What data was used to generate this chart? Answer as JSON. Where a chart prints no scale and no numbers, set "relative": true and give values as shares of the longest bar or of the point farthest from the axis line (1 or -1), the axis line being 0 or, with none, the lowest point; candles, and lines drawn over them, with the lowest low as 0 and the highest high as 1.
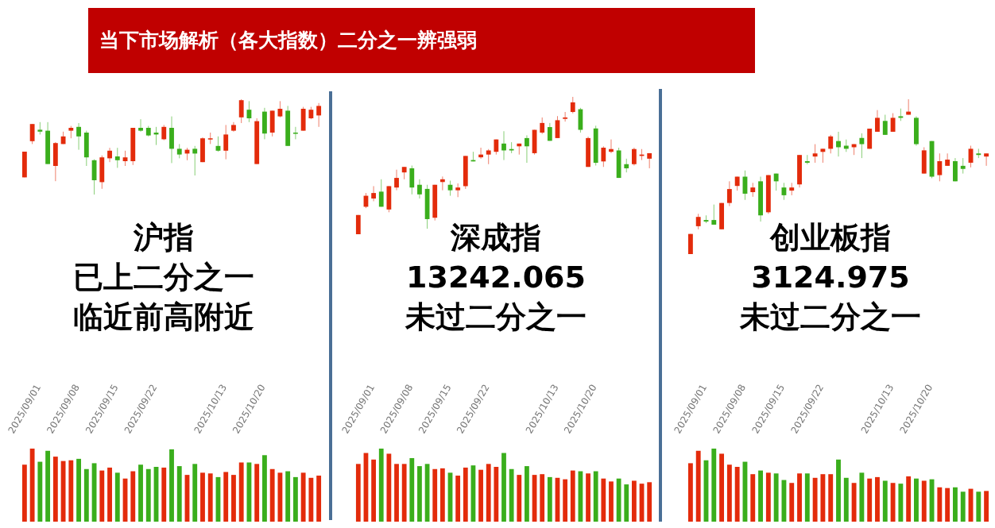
{
  "chart_data": [
    {
      "type": "candlestick",
      "title": "当下市场解析（各大指数）二分之一辨强弱",
      "relative": true,
      "categories": [
        null,
        null,
        null,
        null,
        null,
        null,
        null,
        null,
        null,
        null,
        null,
        null,
        null,
        null,
        null,
        null,
        null,
        null,
        null,
        null,
        null,
        null,
        null,
        null,
        null,
        null,
        null,
        null,
        null,
        null,
        null,
        null,
        null,
        null,
        null,
        null,
        null,
        null,
        null
      ],
      "ohlc": [
        [
          0.18,
          0.45,
          0.18,
          0.45
        ],
        [
          0.56,
          0.74,
          0.53,
          0.74
        ],
        [
          0.68,
          0.76,
          0.63,
          0.66
        ],
        [
          0.67,
          0.76,
          0.32,
          0.32
        ],
        [
          0.3,
          0.55,
          0.14,
          0.54
        ],
        [
          0.53,
          0.66,
          0.53,
          0.61
        ],
        [
          0.67,
          0.72,
          0.59,
          0.7
        ],
        [
          0.71,
          0.75,
          0.47,
          0.61
        ],
        [
          0.65,
          0.67,
          0.3,
          0.39
        ],
        [
          0.36,
          0.37,
          0,
          0.15
        ],
        [
          0.13,
          0.41,
          0.06,
          0.39
        ],
        [
          0.38,
          0.49,
          0.34,
          0.46
        ],
        [
          0.4,
          0.49,
          0.28,
          0.36
        ],
        [
          0.35,
          0.46,
          0.3,
          0.39
        ],
        [
          0.35,
          0.7,
          0.31,
          0.7
        ],
        [
          0.7,
          0.79,
          0.66,
          0.67
        ],
        [
          0.7,
          0.72,
          0.61,
          0.62
        ],
        [
          0.65,
          0.71,
          0.52,
          0.63
        ],
        [
          0.58,
          0.73,
          0.57,
          0.71
        ],
        [
          0.7,
          0.82,
          0.33,
          0.48
        ],
        [
          0.48,
          0.53,
          0.38,
          0.42
        ],
        [
          0.43,
          0.49,
          0.36,
          0.47
        ],
        [
          0.48,
          0.51,
          0.2,
          0.43
        ],
        [
          0.34,
          0.6,
          0.34,
          0.59
        ],
        [
          0.58,
          0.65,
          0.53,
          0.59
        ],
        [
          0.51,
          0.61,
          0.45,
          0.46
        ],
        [
          0.46,
          0.73,
          0.37,
          0.63
        ],
        [
          0.67,
          0.76,
          0.66,
          0.73
        ],
        [
          0.81,
          1,
          0.75,
          0.99
        ],
        [
          0.89,
          0.98,
          0.76,
          0.8
        ],
        [
          0.32,
          0.8,
          0.32,
          0.77
        ],
        [
          0.87,
          0.91,
          0.58,
          0.64
        ],
        [
          0.65,
          0.88,
          0.61,
          0.88
        ],
        [
          0.82,
          0.98,
          0.81,
          0.9
        ],
        [
          0.88,
          0.93,
          0.51,
          0.51
        ],
        [
          0.65,
          0.71,
          0.58,
          0.64
        ],
        [
          0.67,
          0.92,
          0.67,
          0.9
        ],
        [
          0.8,
          0.92,
          0.79,
          0.89
        ],
        [
          0.83,
          0.96,
          0.71,
          0.93
        ]
      ],
      "colors": [
        "#e32b0b",
        "#e32b0b",
        "#3aae1c",
        "#3aae1c",
        "#e32b0b",
        "#e32b0b",
        "#e32b0b",
        "#3aae1c",
        "#3aae1c",
        "#3aae1c",
        "#e32b0b",
        "#e32b0b",
        "#3aae1c",
        "#e32b0b",
        "#e32b0b",
        "#3aae1c",
        "#3aae1c",
        "#3aae1c",
        "#e32b0b",
        "#3aae1c",
        "#3aae1c",
        "#e32b0b",
        "#3aae1c",
        "#e32b0b",
        "#e32b0b",
        "#3aae1c",
        "#e32b0b",
        "#e32b0b",
        "#e32b0b",
        "#3aae1c",
        "#e32b0b",
        "#3aae1c",
        "#e32b0b",
        "#e32b0b",
        "#3aae1c",
        "#3aae1c",
        "#e32b0b",
        "#e32b0b",
        "#e32b0b"
      ],
      "annotations": [
        "沪指",
        "已上二分之一",
        "临近前高附近"
      ]
    },
    {
      "type": "candlestick",
      "relative": true,
      "categories": [
        null,
        null,
        null,
        null,
        null,
        null,
        null,
        null,
        null,
        null,
        null,
        null,
        null,
        null,
        null,
        null,
        null,
        null,
        null,
        null,
        null,
        null,
        null,
        null,
        null,
        null,
        null,
        null,
        null,
        null,
        null,
        null,
        null,
        null,
        null,
        null,
        null,
        null,
        null
      ],
      "ohlc": [
        [
          0,
          0.14,
          0,
          0.14
        ],
        [
          0.2,
          0.3,
          0.19,
          0.28
        ],
        [
          0.26,
          0.35,
          0.24,
          0.3
        ],
        [
          0.31,
          0.4,
          0.2,
          0.2
        ],
        [
          0.18,
          0.35,
          0.16,
          0.35
        ],
        [
          0.34,
          0.47,
          0.32,
          0.41
        ],
        [
          0.45,
          0.49,
          0.4,
          0.49
        ],
        [
          0.48,
          0.5,
          0.29,
          0.34
        ],
        [
          0.36,
          0.4,
          0.26,
          0.29
        ],
        [
          0.33,
          0.36,
          0.04,
          0.11
        ],
        [
          0.12,
          0.36,
          0.1,
          0.36
        ],
        [
          0.38,
          0.42,
          0.32,
          0.4
        ],
        [
          0.36,
          0.39,
          0.28,
          0.32
        ],
        [
          0.32,
          0.37,
          0.27,
          0.34
        ],
        [
          0.35,
          0.57,
          0.33,
          0.57
        ],
        [
          0.54,
          0.6,
          0.53,
          0.53
        ],
        [
          0.56,
          0.63,
          0.55,
          0.58
        ],
        [
          0.58,
          0.62,
          0.51,
          0.61
        ],
        [
          0.6,
          0.69,
          0.58,
          0.69
        ],
        [
          0.66,
          0.75,
          0.54,
          0.61
        ],
        [
          0.62,
          0.67,
          0.59,
          0.61
        ],
        [
          0.64,
          0.66,
          0.58,
          0.66
        ],
        [
          0.7,
          0.72,
          0.52,
          0.64
        ],
        [
          0.59,
          0.76,
          0.58,
          0.76
        ],
        [
          0.74,
          0.85,
          0.73,
          0.81
        ],
        [
          0.78,
          0.81,
          0.68,
          0.68
        ],
        [
          0.7,
          0.86,
          0.7,
          0.83
        ],
        [
          0.84,
          0.89,
          0.82,
          0.85
        ],
        [
          0.89,
          1,
          0.88,
          0.96
        ],
        [
          0.91,
          0.92,
          0.74,
          0.76
        ],
        [
          0.49,
          0.71,
          0.49,
          0.7
        ],
        [
          0.77,
          0.79,
          0.5,
          0.52
        ],
        [
          0.53,
          0.64,
          0.49,
          0.63
        ],
        [
          0.6,
          0.69,
          0.59,
          0.62
        ],
        [
          0.61,
          0.63,
          0.41,
          0.41
        ],
        [
          0.51,
          0.55,
          0.45,
          0.48
        ],
        [
          0.51,
          0.63,
          0.5,
          0.62
        ],
        [
          0.57,
          0.62,
          0.54,
          0.58
        ],
        [
          0.55,
          0.59,
          0.48,
          0.59
        ]
      ],
      "colors": [
        "#e32b0b",
        "#e32b0b",
        "#e32b0b",
        "#3aae1c",
        "#e32b0b",
        "#e32b0b",
        "#e32b0b",
        "#3aae1c",
        "#3aae1c",
        "#3aae1c",
        "#e32b0b",
        "#e32b0b",
        "#3aae1c",
        "#e32b0b",
        "#e32b0b",
        "#3aae1c",
        "#e32b0b",
        "#e32b0b",
        "#e32b0b",
        "#3aae1c",
        "#3aae1c",
        "#e32b0b",
        "#3aae1c",
        "#e32b0b",
        "#e32b0b",
        "#3aae1c",
        "#e32b0b",
        "#e32b0b",
        "#e32b0b",
        "#3aae1c",
        "#e32b0b",
        "#3aae1c",
        "#e32b0b",
        "#e32b0b",
        "#3aae1c",
        "#3aae1c",
        "#e32b0b",
        "#e32b0b",
        "#e32b0b"
      ],
      "annotations": [
        "深成指",
        "13242.065",
        "未过二分之一"
      ]
    },
    {
      "type": "candlestick",
      "relative": true,
      "categories": [
        null,
        null,
        null,
        null,
        null,
        null,
        null,
        null,
        null,
        null,
        null,
        null,
        null,
        null,
        null,
        null,
        null,
        null,
        null,
        null,
        null,
        null,
        null,
        null,
        null,
        null,
        null,
        null,
        null,
        null,
        null,
        null,
        null,
        null,
        null,
        null,
        null,
        null,
        null
      ],
      "ohlc": [
        [
          0,
          0.13,
          0,
          0.13
        ],
        [
          0.18,
          0.26,
          0.16,
          0.24
        ],
        [
          0.22,
          0.25,
          0.2,
          0.21
        ],
        [
          0.22,
          0.32,
          0.19,
          0.19
        ],
        [
          0.16,
          0.33,
          0.16,
          0.33
        ],
        [
          0.33,
          0.47,
          0.31,
          0.42
        ],
        [
          0.44,
          0.5,
          0.41,
          0.5
        ],
        [
          0.5,
          0.54,
          0.35,
          0.39
        ],
        [
          0.4,
          0.46,
          0.37,
          0.43
        ],
        [
          0.47,
          0.5,
          0.21,
          0.25
        ],
        [
          0.27,
          0.51,
          0.26,
          0.51
        ],
        [
          0.52,
          0.52,
          0.41,
          0.47
        ],
        [
          0.43,
          0.46,
          0.35,
          0.38
        ],
        [
          0.41,
          0.46,
          0.38,
          0.43
        ],
        [
          0.45,
          0.64,
          0.43,
          0.64
        ],
        [
          0.6,
          0.64,
          0.58,
          0.59
        ],
        [
          0.63,
          0.71,
          0.59,
          0.65
        ],
        [
          0.66,
          0.68,
          0.59,
          0.68
        ],
        [
          0.68,
          0.77,
          0.65,
          0.76
        ],
        [
          0.73,
          0.79,
          0.63,
          0.69
        ],
        [
          0.7,
          0.74,
          0.66,
          0.68
        ],
        [
          0.69,
          0.71,
          0.64,
          0.71
        ],
        [
          0.75,
          0.78,
          0.62,
          0.71
        ],
        [
          0.68,
          0.81,
          0.68,
          0.81
        ],
        [
          0.79,
          0.93,
          0.79,
          0.88
        ],
        [
          0.86,
          0.9,
          0.77,
          0.77
        ],
        [
          0.79,
          0.91,
          0.79,
          0.88
        ],
        [
          0.89,
          0.94,
          0.86,
          0.88
        ],
        [
          0.9,
          1,
          0.9,
          0.92
        ],
        [
          0.88,
          0.89,
          0.7,
          0.71
        ],
        [
          0.52,
          0.69,
          0.52,
          0.67
        ],
        [
          0.73,
          0.73,
          0.49,
          0.5
        ],
        [
          0.51,
          0.65,
          0.47,
          0.6
        ],
        [
          0.57,
          0.65,
          0.57,
          0.61
        ],
        [
          0.6,
          0.62,
          0.47,
          0.47
        ],
        [
          0.57,
          0.62,
          0.52,
          0.55
        ],
        [
          0.59,
          0.7,
          0.56,
          0.68
        ],
        [
          0.65,
          0.68,
          0.62,
          0.64
        ],
        [
          0.63,
          0.65,
          0.57,
          0.65
        ]
      ],
      "colors": [
        "#e32b0b",
        "#e32b0b",
        "#3aae1c",
        "#3aae1c",
        "#e32b0b",
        "#e32b0b",
        "#e32b0b",
        "#3aae1c",
        "#e32b0b",
        "#3aae1c",
        "#e32b0b",
        "#3aae1c",
        "#3aae1c",
        "#e32b0b",
        "#e32b0b",
        "#3aae1c",
        "#e32b0b",
        "#e32b0b",
        "#e32b0b",
        "#3aae1c",
        "#3aae1c",
        "#e32b0b",
        "#3aae1c",
        "#e32b0b",
        "#e32b0b",
        "#3aae1c",
        "#e32b0b",
        "#3aae1c",
        "#e32b0b",
        "#3aae1c",
        "#e32b0b",
        "#3aae1c",
        "#e32b0b",
        "#e32b0b",
        "#3aae1c",
        "#3aae1c",
        "#e32b0b",
        "#3aae1c",
        "#e32b0b"
      ],
      "annotations": [
        "创业板指",
        "3124.975",
        "未过二分之一"
      ]
    },
    {
      "type": "bar",
      "relative": true,
      "categories": [
        "2025/09/01",
        null,
        null,
        null,
        null,
        "2025/09/08",
        null,
        null,
        null,
        null,
        "2025/09/15",
        null,
        null,
        null,
        null,
        "2025/09/22",
        null,
        null,
        null,
        null,
        null,
        null,
        null,
        null,
        "2025/10/13",
        null,
        null,
        null,
        null,
        "2025/10/20",
        null,
        null,
        null,
        null,
        null,
        null,
        null,
        null,
        null
      ],
      "values": [
        0.78,
        1,
        0.82,
        0.97,
        0.89,
        0.83,
        0.84,
        0.86,
        0.72,
        0.8,
        0.7,
        0.74,
        0.67,
        0.59,
        0.69,
        0.78,
        0.72,
        0.75,
        0.74,
        0.99,
        0.76,
        0.64,
        0.79,
        0.67,
        0.66,
        0.61,
        0.68,
        0.64,
        0.81,
        0.81,
        0.79,
        0.91,
        0.72,
        0.67,
        0.69,
        0.61,
        0.67,
        0.6,
        0.63
      ],
      "colors": [
        "#e32b0b",
        "#e32b0b",
        "#3aae1c",
        "#3aae1c",
        "#e32b0b",
        "#e32b0b",
        "#e32b0b",
        "#3aae1c",
        "#3aae1c",
        "#3aae1c",
        "#e32b0b",
        "#e32b0b",
        "#3aae1c",
        "#e32b0b",
        "#e32b0b",
        "#3aae1c",
        "#3aae1c",
        "#3aae1c",
        "#e32b0b",
        "#3aae1c",
        "#3aae1c",
        "#e32b0b",
        "#3aae1c",
        "#e32b0b",
        "#e32b0b",
        "#3aae1c",
        "#e32b0b",
        "#e32b0b",
        "#e32b0b",
        "#3aae1c",
        "#e32b0b",
        "#3aae1c",
        "#e32b0b",
        "#e32b0b",
        "#3aae1c",
        "#3aae1c",
        "#e32b0b",
        "#e32b0b",
        "#e32b0b"
      ]
    },
    {
      "type": "bar",
      "relative": true,
      "categories": [
        "2025/09/01",
        null,
        null,
        null,
        null,
        "2025/09/08",
        null,
        null,
        null,
        null,
        "2025/09/15",
        null,
        null,
        null,
        null,
        "2025/09/22",
        null,
        null,
        null,
        null,
        null,
        null,
        null,
        null,
        "2025/10/13",
        null,
        null,
        null,
        null,
        "2025/10/20",
        null,
        null,
        null,
        null,
        null,
        null,
        null,
        null,
        null
      ],
      "values": [
        0.79,
        0.94,
        0.85,
        1,
        0.93,
        0.79,
        0.79,
        0.87,
        0.76,
        0.79,
        0.72,
        0.73,
        0.67,
        0.63,
        0.74,
        0.77,
        0.71,
        0.79,
        0.75,
        0.94,
        0.72,
        0.64,
        0.76,
        0.64,
        0.65,
        0.61,
        0.6,
        0.58,
        0.7,
        0.69,
        0.66,
        0.69,
        0.59,
        0.55,
        0.59,
        0.51,
        0.56,
        0.52,
        0.54
      ],
      "colors": [
        "#e32b0b",
        "#e32b0b",
        "#e32b0b",
        "#3aae1c",
        "#e32b0b",
        "#e32b0b",
        "#e32b0b",
        "#3aae1c",
        "#3aae1c",
        "#3aae1c",
        "#e32b0b",
        "#e32b0b",
        "#3aae1c",
        "#e32b0b",
        "#e32b0b",
        "#3aae1c",
        "#e32b0b",
        "#e32b0b",
        "#e32b0b",
        "#3aae1c",
        "#3aae1c",
        "#e32b0b",
        "#3aae1c",
        "#e32b0b",
        "#e32b0b",
        "#3aae1c",
        "#e32b0b",
        "#e32b0b",
        "#e32b0b",
        "#3aae1c",
        "#e32b0b",
        "#3aae1c",
        "#e32b0b",
        "#e32b0b",
        "#3aae1c",
        "#3aae1c",
        "#e32b0b",
        "#e32b0b",
        "#e32b0b"
      ]
    },
    {
      "type": "bar",
      "relative": true,
      "categories": [
        "2025/09/01",
        null,
        null,
        null,
        null,
        "2025/09/08",
        null,
        null,
        null,
        null,
        "2025/09/15",
        null,
        null,
        null,
        null,
        "2025/09/22",
        null,
        null,
        null,
        null,
        null,
        null,
        null,
        null,
        "2025/10/13",
        null,
        null,
        null,
        null,
        "2025/10/20",
        null,
        null,
        null,
        null,
        null,
        null,
        null,
        null,
        null
      ],
      "values": [
        0.8,
        0.97,
        0.84,
        1,
        0.93,
        0.78,
        0.75,
        0.82,
        0.65,
        0.7,
        0.67,
        0.66,
        0.57,
        0.53,
        0.66,
        0.66,
        0.6,
        0.65,
        0.65,
        0.85,
        0.6,
        0.53,
        0.67,
        0.59,
        0.61,
        0.56,
        0.53,
        0.52,
        0.62,
        0.59,
        0.56,
        0.58,
        0.47,
        0.46,
        0.47,
        0.41,
        0.45,
        0.41,
        0.42
      ],
      "colors": [
        "#e32b0b",
        "#e32b0b",
        "#3aae1c",
        "#3aae1c",
        "#e32b0b",
        "#e32b0b",
        "#e32b0b",
        "#3aae1c",
        "#e32b0b",
        "#3aae1c",
        "#e32b0b",
        "#3aae1c",
        "#3aae1c",
        "#e32b0b",
        "#e32b0b",
        "#3aae1c",
        "#e32b0b",
        "#e32b0b",
        "#e32b0b",
        "#3aae1c",
        "#3aae1c",
        "#e32b0b",
        "#3aae1c",
        "#e32b0b",
        "#e32b0b",
        "#3aae1c",
        "#e32b0b",
        "#3aae1c",
        "#e32b0b",
        "#3aae1c",
        "#e32b0b",
        "#3aae1c",
        "#e32b0b",
        "#e32b0b",
        "#3aae1c",
        "#3aae1c",
        "#e32b0b",
        "#3aae1c",
        "#e32b0b"
      ]
    }
  ]
}
